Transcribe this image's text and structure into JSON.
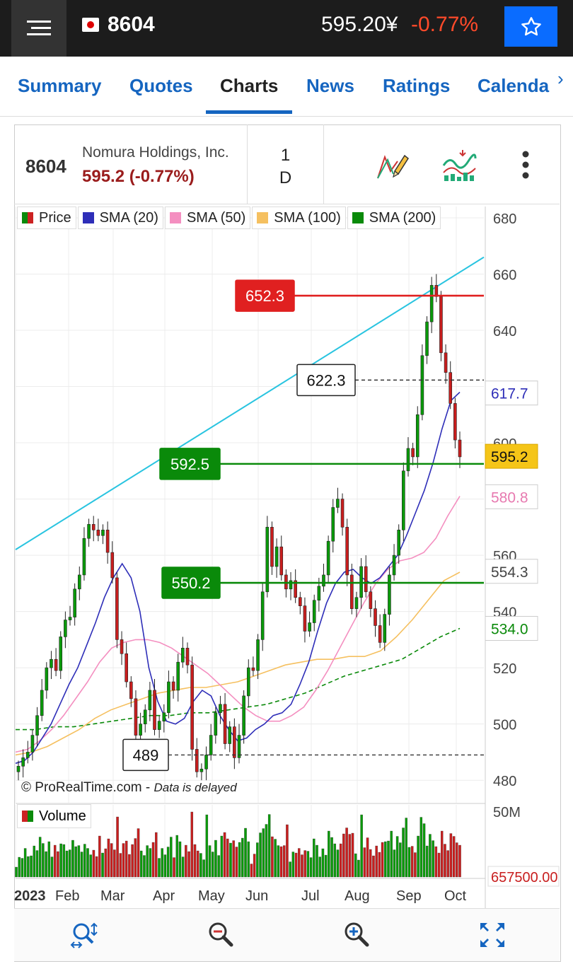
{
  "header": {
    "ticker": "8604",
    "price": "595.20¥",
    "change": "-0.77%",
    "flag_icon": "japan-flag-icon",
    "menu_icon": "hamburger-menu-icon",
    "star_icon": "star-icon"
  },
  "tabs": [
    "Summary",
    "Quotes",
    "Charts",
    "News",
    "Ratings",
    "Calenda"
  ],
  "active_tab": "Charts",
  "info": {
    "code": "8604",
    "company": "Nomura Holdings, Inc.",
    "quote": "595.2 (-0.77%)",
    "period_num": "1",
    "period_unit": "D"
  },
  "legend": [
    {
      "label": "Price",
      "color": "#cc2222"
    },
    {
      "label": "SMA (20)",
      "color": "#2e2eb8"
    },
    {
      "label": "SMA (50)",
      "color": "#f48fc0"
    },
    {
      "label": "SMA (100)",
      "color": "#f5c060"
    },
    {
      "label": "SMA (200)",
      "color": "#0a8a0a"
    }
  ],
  "watermark": "© ProRealTime.com",
  "watermark_note": "Data is delayed",
  "volume_label": "Volume",
  "chart_data": {
    "type": "candlestick",
    "x_labels": [
      "2023",
      "Feb",
      "Mar",
      "Apr",
      "May",
      "Jun",
      "Jul",
      "Aug",
      "Sep",
      "Oct"
    ],
    "y_ticks": [
      480,
      500,
      520,
      540,
      560,
      580,
      600,
      620,
      640,
      660,
      680
    ],
    "ylim": [
      472,
      682
    ],
    "markers": {
      "last_price": 595.2,
      "sma20": 617.7,
      "sma50": 580.8,
      "sma100": 554.3,
      "sma200": 534.0
    },
    "hlines": [
      {
        "label": "652.3",
        "value": 652.3,
        "color": "#e02020",
        "style": "solid"
      },
      {
        "label": "622.3",
        "value": 622.3,
        "color": "#333333",
        "style": "dashed"
      },
      {
        "label": "592.5",
        "value": 592.5,
        "color": "#0a8a0a",
        "style": "solid"
      },
      {
        "label": "550.2",
        "value": 550.2,
        "color": "#0a8a0a",
        "style": "solid"
      },
      {
        "label": "489",
        "value": 489,
        "color": "#333333",
        "style": "dashed"
      }
    ],
    "trendline": {
      "color": "#29c4e0",
      "from_value": 562,
      "to_value": 666
    },
    "volume_labels": [
      "50M",
      "657500.00"
    ],
    "price_waypoints": [
      485,
      488,
      490,
      496,
      503,
      512,
      520,
      523,
      519,
      531,
      537,
      538,
      548,
      553,
      566,
      571,
      569,
      567,
      569,
      561,
      552,
      530,
      525,
      515,
      509,
      496,
      500,
      505,
      512,
      498,
      501,
      504,
      515,
      512,
      522,
      527,
      521,
      491,
      483,
      484,
      489,
      496,
      504,
      507,
      493,
      499,
      488,
      496,
      510,
      520,
      519,
      530,
      547,
      570,
      556,
      563,
      553,
      548,
      551,
      545,
      542,
      533,
      536,
      544,
      549,
      553,
      565,
      577,
      580,
      570,
      553,
      541,
      545,
      556,
      547,
      541,
      535,
      529,
      539,
      553,
      560,
      569,
      590,
      598,
      595,
      610,
      631,
      643,
      656,
      652,
      632,
      625,
      614,
      601,
      595
    ],
    "sma20": [
      486,
      487,
      490,
      495,
      500,
      507,
      514,
      520,
      528,
      536,
      545,
      552,
      557,
      552,
      540,
      520,
      508,
      501,
      500,
      502,
      508,
      512,
      510,
      503,
      498,
      494,
      495,
      498,
      500,
      503,
      504,
      507,
      514,
      522,
      533,
      543,
      550,
      554,
      555,
      552,
      550,
      552,
      556,
      560,
      567,
      575,
      583,
      593,
      605,
      615,
      618
    ],
    "sma50": [
      490,
      491,
      494,
      498,
      503,
      509,
      515,
      522,
      527,
      529,
      530,
      530,
      529,
      527,
      524,
      521,
      518,
      514,
      510,
      506,
      503,
      501,
      501,
      503,
      506,
      512,
      519,
      527,
      535,
      543,
      550,
      555,
      558,
      559,
      561,
      566,
      574,
      581
    ],
    "sma100": [
      489,
      490,
      492,
      495,
      498,
      502,
      505,
      507,
      509,
      511,
      512,
      513,
      513,
      514,
      515,
      517,
      519,
      521,
      522,
      523,
      523,
      524,
      524,
      526,
      531,
      537,
      544,
      551,
      554
    ],
    "sma200": [
      498,
      498,
      499,
      499,
      500,
      501,
      502,
      503,
      503,
      504,
      504,
      505,
      506,
      507,
      509,
      511,
      514,
      517,
      519,
      521,
      523,
      527,
      531,
      534
    ]
  }
}
